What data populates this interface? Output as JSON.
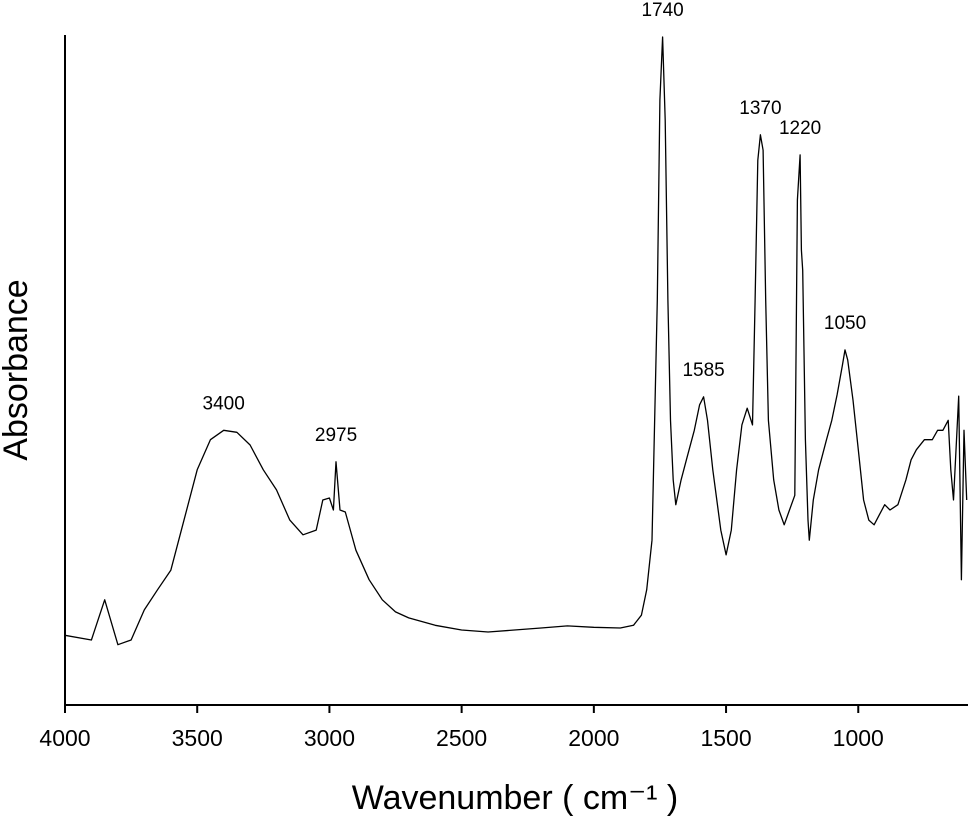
{
  "chart_data": {
    "type": "line",
    "x_label": "Wavenumber ( cm⁻¹ )",
    "y_label": "Absorbance",
    "color": "#000000",
    "xlim": [
      4000,
      585
    ],
    "ylim": [
      0,
      1
    ],
    "xticks": [
      4000,
      3500,
      3000,
      2500,
      2000,
      1500,
      1000
    ],
    "x": [
      4000,
      3900,
      3850,
      3800,
      3750,
      3700,
      3650,
      3600,
      3550,
      3500,
      3450,
      3400,
      3350,
      3300,
      3250,
      3200,
      3150,
      3100,
      3050,
      3025,
      3000,
      2985,
      2975,
      2960,
      2940,
      2900,
      2850,
      2800,
      2750,
      2700,
      2600,
      2500,
      2400,
      2300,
      2200,
      2100,
      2000,
      1900,
      1850,
      1820,
      1800,
      1780,
      1760,
      1750,
      1740,
      1730,
      1720,
      1710,
      1700,
      1690,
      1670,
      1650,
      1620,
      1600,
      1585,
      1570,
      1550,
      1520,
      1500,
      1480,
      1460,
      1440,
      1420,
      1400,
      1390,
      1380,
      1370,
      1360,
      1350,
      1340,
      1320,
      1300,
      1280,
      1260,
      1240,
      1230,
      1220,
      1215,
      1210,
      1200,
      1190,
      1185,
      1170,
      1150,
      1120,
      1100,
      1080,
      1060,
      1050,
      1040,
      1020,
      1000,
      980,
      960,
      940,
      920,
      900,
      880,
      850,
      820,
      800,
      780,
      750,
      720,
      700,
      680,
      660,
      650,
      640,
      620,
      610,
      600,
      590
    ],
    "values": [
      0.104,
      0.097,
      0.157,
      0.09,
      0.097,
      0.142,
      0.172,
      0.201,
      0.276,
      0.351,
      0.396,
      0.41,
      0.407,
      0.388,
      0.351,
      0.321,
      0.276,
      0.254,
      0.261,
      0.306,
      0.309,
      0.291,
      0.363,
      0.291,
      0.288,
      0.231,
      0.187,
      0.157,
      0.139,
      0.13,
      0.119,
      0.112,
      0.109,
      0.112,
      0.115,
      0.118,
      0.116,
      0.115,
      0.119,
      0.134,
      0.172,
      0.246,
      0.604,
      0.903,
      0.997,
      0.873,
      0.604,
      0.425,
      0.336,
      0.299,
      0.336,
      0.366,
      0.41,
      0.448,
      0.46,
      0.425,
      0.351,
      0.261,
      0.224,
      0.261,
      0.351,
      0.418,
      0.443,
      0.418,
      0.604,
      0.813,
      0.851,
      0.828,
      0.604,
      0.425,
      0.336,
      0.291,
      0.269,
      0.291,
      0.313,
      0.754,
      0.821,
      0.679,
      0.649,
      0.396,
      0.276,
      0.246,
      0.306,
      0.351,
      0.396,
      0.425,
      0.463,
      0.507,
      0.53,
      0.515,
      0.455,
      0.381,
      0.306,
      0.276,
      0.269,
      0.284,
      0.299,
      0.291,
      0.299,
      0.336,
      0.366,
      0.381,
      0.396,
      0.396,
      0.41,
      0.41,
      0.425,
      0.351,
      0.306,
      0.461,
      0.187,
      0.41,
      0.306
    ],
    "peaks": [
      {
        "x": 3400,
        "y": 0.41
      },
      {
        "x": 2975,
        "y": 0.363
      },
      {
        "x": 1740,
        "y": 0.997
      },
      {
        "x": 1585,
        "y": 0.46
      },
      {
        "x": 1370,
        "y": 0.851
      },
      {
        "x": 1220,
        "y": 0.821
      },
      {
        "x": 1050,
        "y": 0.53
      }
    ]
  }
}
